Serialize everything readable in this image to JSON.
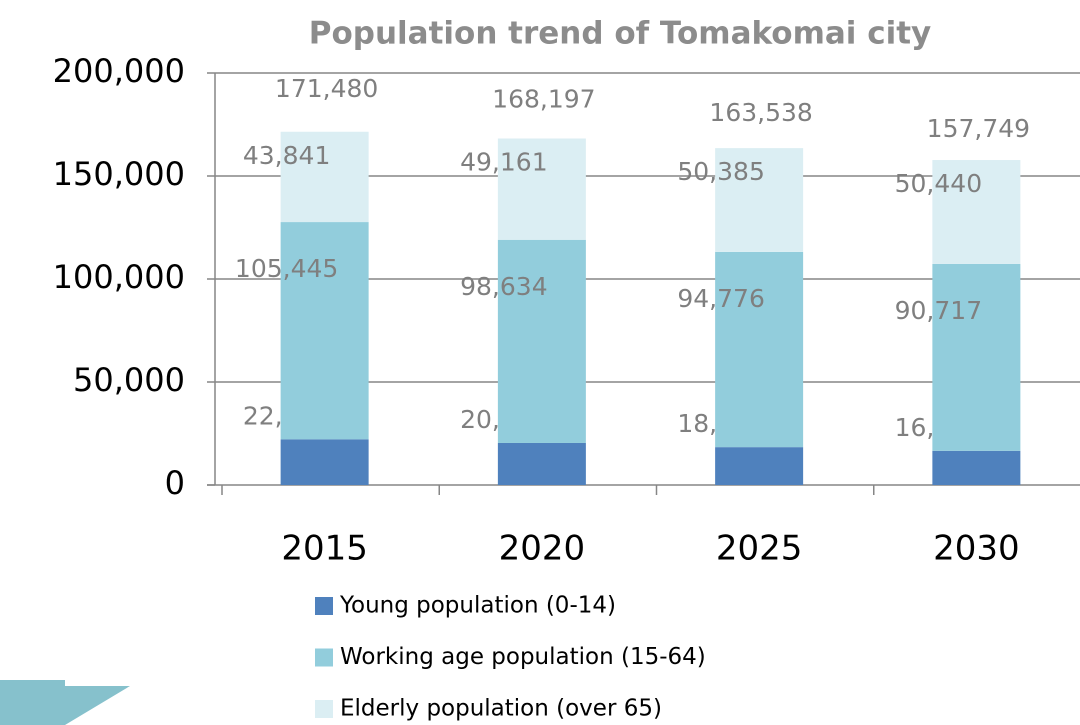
{
  "chart_data": {
    "type": "stacked_bar",
    "title": "Population trend of Tomakomai city",
    "categories": [
      "2015",
      "2020",
      "2025",
      "2030"
    ],
    "series": [
      {
        "name": "Young population (0-14)",
        "color": "#4f81bd",
        "values": [
          22194,
          20402,
          18377,
          16592
        ],
        "value_labels": [
          "22,194",
          "20,402",
          "18,377",
          "16,592"
        ]
      },
      {
        "name": "Working age population (15-64)",
        "color": "#92cddc",
        "values": [
          105445,
          98634,
          94776,
          90717
        ],
        "value_labels": [
          "105,445",
          "98,634",
          "94,776",
          "90,717"
        ]
      },
      {
        "name": "Elderly population (over 65)",
        "color": "#dbeef3",
        "values": [
          43841,
          49161,
          50385,
          50440
        ],
        "value_labels": [
          "43,841",
          "49,161",
          "50,385",
          "50,440"
        ]
      }
    ],
    "totals": [
      171480,
      168197,
      163538,
      157749
    ],
    "total_labels": [
      "171,480",
      "168,197",
      "163,538",
      "157,749"
    ],
    "ylim": [
      0,
      200000
    ],
    "yticks": [
      0,
      {
        "value": 50000,
        "label": "50,000"
      },
      {
        "value": 100000,
        "label": "100,000"
      },
      {
        "value": 150000,
        "label": "150,000"
      },
      {
        "value": 200000,
        "label": "200,000"
      }
    ],
    "grid": true,
    "legend": "bottom"
  }
}
